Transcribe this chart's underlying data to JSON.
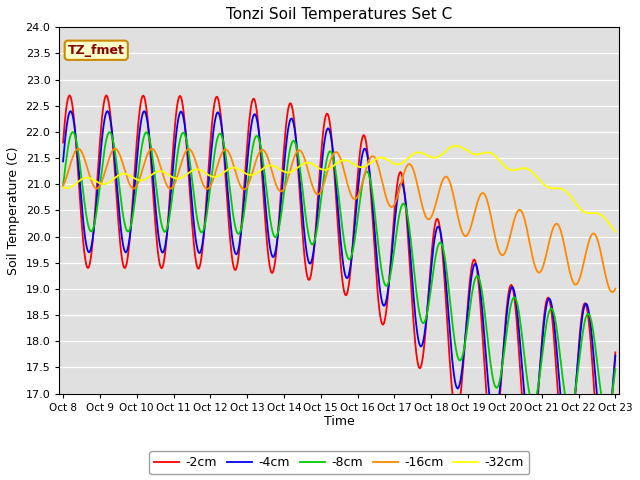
{
  "title": "Tonzi Soil Temperatures Set C",
  "xlabel": "Time",
  "ylabel": "Soil Temperature (C)",
  "annotation": "TZ_fmet",
  "ylim": [
    17.0,
    24.0
  ],
  "yticks": [
    17.0,
    17.5,
    18.0,
    18.5,
    19.0,
    19.5,
    20.0,
    20.5,
    21.0,
    21.5,
    22.0,
    22.5,
    23.0,
    23.5,
    24.0
  ],
  "xtick_labels": [
    "Oct 8",
    "Oct 9",
    "Oct 10",
    "Oct 11",
    "Oct 12",
    "Oct 13",
    "Oct 14",
    "Oct 15",
    "Oct 16",
    "Oct 17",
    "Oct 18",
    "Oct 19",
    "Oct 20",
    "Oct 21",
    "Oct 22",
    "Oct 23"
  ],
  "series_colors": [
    "#ff0000",
    "#0000ff",
    "#00cc00",
    "#ff8800",
    "#ffff00"
  ],
  "series_labels": [
    "-2cm",
    "-4cm",
    "-8cm",
    "-16cm",
    "-32cm"
  ],
  "line_width": 1.3,
  "bg_color": "#e0e0e0",
  "legend_edge_color": "#888888",
  "annotation_bg": "#ffffcc",
  "annotation_edge": "#cc8800",
  "n_points": 600
}
